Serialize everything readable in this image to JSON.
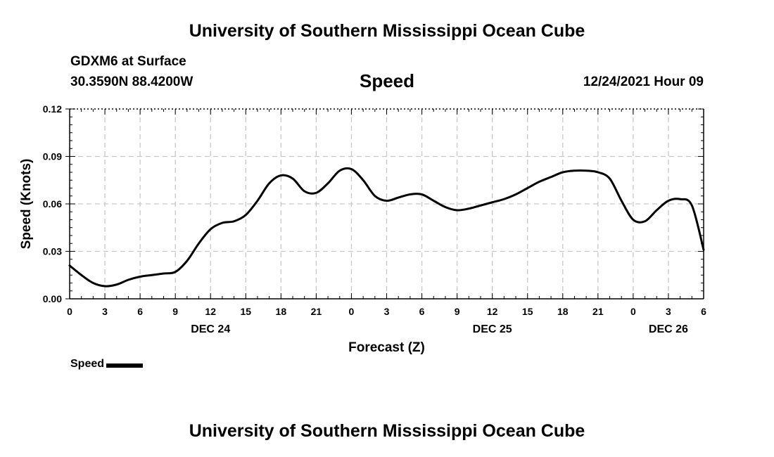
{
  "header": {
    "title": "University of Southern Mississippi Ocean Cube",
    "station": "GDXM6 at Surface",
    "coords": "30.3590N  88.4200W",
    "variable": "Speed",
    "timestamp": "12/24/2021 Hour 09"
  },
  "footer": {
    "title": "University of Southern Mississippi Ocean Cube"
  },
  "legend": {
    "label": "Speed"
  },
  "chart_data": {
    "type": "line",
    "title": "Speed",
    "xlabel": "Forecast (Z)",
    "ylabel": "Speed (Knots)",
    "xlim": [
      0,
      54
    ],
    "ylim": [
      0,
      0.12
    ],
    "yticks": [
      "0.00",
      "0.03",
      "0.06",
      "0.09",
      "0.12"
    ],
    "xticks": [
      "0",
      "3",
      "6",
      "9",
      "12",
      "15",
      "18",
      "21",
      "0",
      "3",
      "6",
      "9",
      "12",
      "15",
      "18",
      "21",
      "0",
      "3",
      "6"
    ],
    "date_labels": [
      {
        "label": "DEC 24",
        "hour": 12
      },
      {
        "label": "DEC 25",
        "hour": 36
      },
      {
        "label": "DEC 26",
        "hour": 51
      }
    ],
    "grid": true,
    "series": [
      {
        "name": "Speed",
        "color": "#000000",
        "x": [
          0,
          1,
          2,
          3,
          4,
          5,
          6,
          7,
          8,
          9,
          10,
          11,
          12,
          13,
          14,
          15,
          16,
          17,
          18,
          19,
          20,
          21,
          22,
          23,
          24,
          25,
          26,
          27,
          28,
          29,
          30,
          31,
          32,
          33,
          34,
          35,
          36,
          37,
          38,
          39,
          40,
          41,
          42,
          43,
          44,
          45,
          46,
          47,
          48,
          49,
          50,
          51,
          52,
          53,
          54
        ],
        "values": [
          0.021,
          0.015,
          0.01,
          0.008,
          0.009,
          0.012,
          0.014,
          0.015,
          0.016,
          0.017,
          0.024,
          0.035,
          0.044,
          0.048,
          0.049,
          0.053,
          0.062,
          0.073,
          0.078,
          0.076,
          0.068,
          0.067,
          0.073,
          0.081,
          0.082,
          0.075,
          0.065,
          0.062,
          0.064,
          0.066,
          0.066,
          0.062,
          0.058,
          0.056,
          0.057,
          0.059,
          0.061,
          0.063,
          0.066,
          0.07,
          0.074,
          0.077,
          0.08,
          0.081,
          0.081,
          0.08,
          0.076,
          0.062,
          0.05,
          0.049,
          0.056,
          0.062,
          0.063,
          0.059,
          0.031
        ]
      }
    ]
  }
}
